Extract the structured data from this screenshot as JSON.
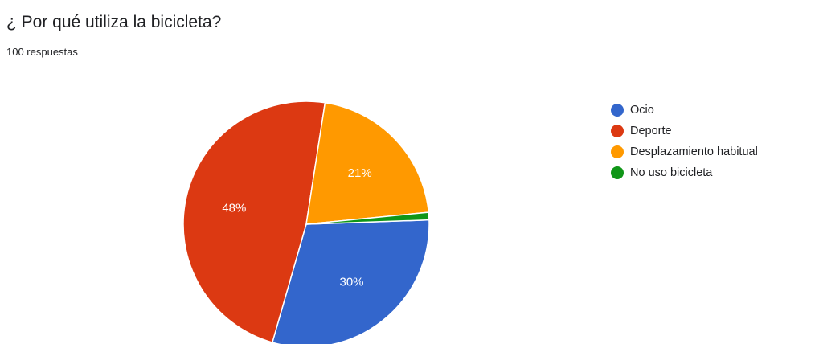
{
  "header": {
    "title": "¿ Por qué utiliza la bicicleta?",
    "responses": "100 respuestas"
  },
  "chart_data": {
    "type": "pie",
    "slices": [
      {
        "name": "Ocio",
        "value": 30,
        "label": "30%",
        "color": "#3366cc"
      },
      {
        "name": "Deporte",
        "value": 48,
        "label": "48%",
        "color": "#dc3912"
      },
      {
        "name": "Desplazamiento habitual",
        "value": 21,
        "label": "21%",
        "color": "#ff9900"
      },
      {
        "name": "No uso bicicleta",
        "value": 1,
        "label": "",
        "color": "#109618"
      }
    ],
    "legend_position": "right"
  }
}
